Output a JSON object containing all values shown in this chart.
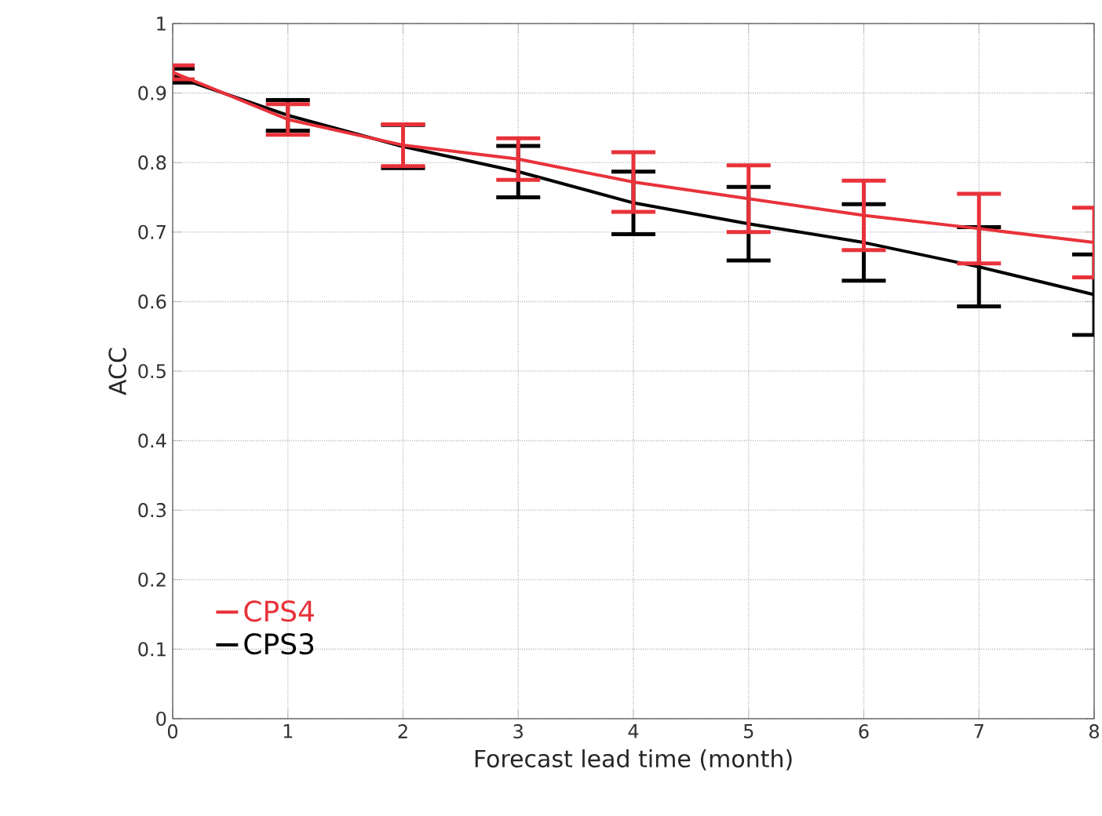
{
  "chart_data": {
    "type": "line",
    "xlabel": "Forecast lead time (month)",
    "ylabel": "ACC",
    "x": [
      0,
      1,
      2,
      3,
      4,
      5,
      6,
      7,
      8
    ],
    "series": [
      {
        "name": "CPS3",
        "color": "#000000",
        "values": [
          0.925,
          0.868,
          0.823,
          0.787,
          0.742,
          0.712,
          0.685,
          0.65,
          0.61
        ],
        "errors": [
          0.01,
          0.022,
          0.031,
          0.037,
          0.045,
          0.053,
          0.055,
          0.057,
          0.058
        ]
      },
      {
        "name": "CPS4",
        "color": "#e8323a",
        "values": [
          0.93,
          0.862,
          0.825,
          0.805,
          0.772,
          0.748,
          0.724,
          0.705,
          0.685
        ],
        "errors": [
          0.01,
          0.022,
          0.03,
          0.03,
          0.043,
          0.048,
          0.05,
          0.05,
          0.05
        ]
      }
    ],
    "xlim": [
      0,
      8
    ],
    "ylim": [
      0,
      1
    ],
    "xticks": [
      0,
      1,
      2,
      3,
      4,
      5,
      6,
      7,
      8
    ],
    "yticks": [
      0,
      0.1,
      0.2,
      0.3,
      0.4,
      0.5,
      0.6,
      0.7,
      0.8,
      0.9,
      1
    ],
    "grid": true,
    "legend": "bottom left",
    "marker": "none",
    "line_style": "solid"
  }
}
